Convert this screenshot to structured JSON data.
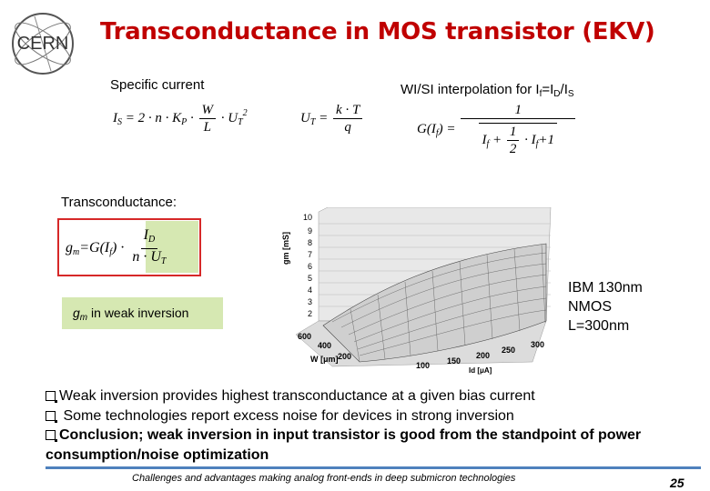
{
  "logo_text": "CERN",
  "title": "Transconductance in MOS transistor (EKV)",
  "specific_current": {
    "label": "Specific current",
    "Is": "I",
    "Is_sub": "S",
    "eq": "= 2 · n · K",
    "Kp_sub": "P",
    "dot": " · ",
    "W": "W",
    "L": "L",
    "UT": "· U",
    "UT_sub": "T",
    "UT_sup": "2",
    "Ut_lhs": "U",
    "Ut_lhs_sub": "T",
    "Ut_eq": "=",
    "kT": "k · T",
    "q": "q"
  },
  "interpolation": {
    "label_prefix": "WI/SI interpolation for I",
    "sub_f": "f",
    "eq_part": "=I",
    "sub_D": "D",
    "slash": "/I",
    "sub_S": "S",
    "G": "G(I",
    "G_sub": "f",
    "G_close": ") =",
    "one": "1",
    "sqrt_If": "I",
    "sqrt_If_sub": "f",
    "plus1": "+",
    "half_num": "1",
    "half_den": "2",
    "dot": "·",
    "sqrt_If2": "I",
    "sqrt_If2_sub": "f",
    "plus_one": "+1"
  },
  "transconductance": {
    "label": "Transconductance:",
    "gm": "g",
    "gm_sub": "m",
    "eq": "=G(I",
    "eq_sub": "f",
    "eq_close": ") ·",
    "num": "I",
    "num_sub": "D",
    "den": "n · U",
    "den_sub": "T"
  },
  "weak_inversion": {
    "gm": "g",
    "gm_sub": "m",
    "text": " in weak inversion"
  },
  "plot": {
    "z_label": "gm [mS]",
    "z_ticks": [
      "10",
      "9",
      "8",
      "7",
      "6",
      "5",
      "4",
      "3",
      "2"
    ],
    "w_label": "W [μm]",
    "w_ticks": [
      "600",
      "400",
      "200"
    ],
    "id_label": "Id [μA]",
    "id_ticks": [
      "100",
      "150",
      "200",
      "250",
      "300"
    ]
  },
  "ibm_note": [
    "IBM 130nm",
    "NMOS",
    "L=300nm"
  ],
  "bullets": [
    {
      "text": "Weak inversion provides highest transconductance at a given bias current",
      "bold": false
    },
    {
      "text": " Some technologies report excess noise for devices in strong inversion",
      "bold": false
    },
    {
      "text": "Conclusion; weak inversion in input transistor is good from the standpoint of power consumption/noise optimization",
      "bold": true
    }
  ],
  "footer": "Challenges and advantages making analog front-ends in deep submicron technologies",
  "page_number": "25",
  "colors": {
    "title": "#c00000",
    "highlight": "#d6e8b2",
    "box_border": "#d62828",
    "footer_line": "#4f81bd"
  }
}
